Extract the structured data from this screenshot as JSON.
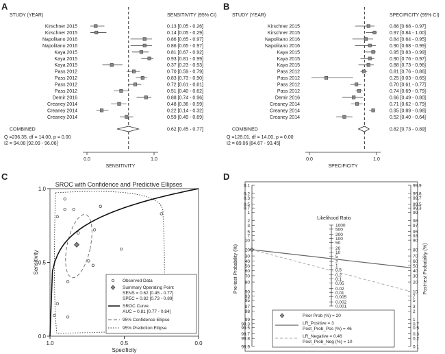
{
  "chart_data": [
    {
      "panel": "A",
      "type": "forest",
      "col_study": "STUDY (YEAR)",
      "col_est": "SENSITIVITY (95% CI)",
      "xlabel": "SENSITIVITY",
      "xlim": [
        0,
        1
      ],
      "ticks": [
        {
          "v": 0,
          "label": "0.0"
        },
        {
          "v": 1,
          "label": "1.0"
        }
      ],
      "ref_line": 0.62,
      "studies": [
        {
          "name": "Kirschner 2015",
          "est": 0.13,
          "lo": 0.05,
          "hi": 0.26,
          "ci": "0.13 [0.05 - 0.26]"
        },
        {
          "name": "Kirschner 2015",
          "est": 0.14,
          "lo": 0.05,
          "hi": 0.29,
          "ci": "0.14 [0.05 - 0.29]"
        },
        {
          "name": "Napolitano 2016",
          "est": 0.86,
          "lo": 0.65,
          "hi": 0.97,
          "ci": "0.86 [0.65 - 0.97]"
        },
        {
          "name": "Napolitano 2016",
          "est": 0.86,
          "lo": 0.65,
          "hi": 0.97,
          "ci": "0.86 [0.65 - 0.97]"
        },
        {
          "name": "Kaya 2015",
          "est": 0.81,
          "lo": 0.67,
          "hi": 0.92,
          "ci": "0.81 [0.67 - 0.92]"
        },
        {
          "name": "Kaya 2015",
          "est": 0.93,
          "lo": 0.81,
          "hi": 0.99,
          "ci": "0.93 [0.81 - 0.99]"
        },
        {
          "name": "Kaya 2015",
          "est": 0.37,
          "lo": 0.23,
          "hi": 0.53,
          "ci": "0.37 [0.23 - 0.53]"
        },
        {
          "name": "Pass 2012",
          "est": 0.7,
          "lo": 0.59,
          "hi": 0.79,
          "ci": "0.70 [0.59 - 0.79]"
        },
        {
          "name": "Pass 2012",
          "est": 0.83,
          "lo": 0.73,
          "hi": 0.9,
          "ci": "0.83 [0.73 - 0.90]"
        },
        {
          "name": "Pass 2012",
          "est": 0.72,
          "lo": 0.61,
          "hi": 0.81,
          "ci": "0.72 [0.61 - 0.81]"
        },
        {
          "name": "Pass 2012",
          "est": 0.51,
          "lo": 0.4,
          "hi": 0.62,
          "ci": "0.51 [0.40 - 0.62]"
        },
        {
          "name": "Demir 2016",
          "est": 0.88,
          "lo": 0.74,
          "hi": 0.96,
          "ci": "0.88 [0.74 - 0.96]"
        },
        {
          "name": "Creaney 2014",
          "est": 0.48,
          "lo": 0.36,
          "hi": 0.59,
          "ci": "0.48 [0.36 - 0.59]"
        },
        {
          "name": "Creaney 2014",
          "est": 0.22,
          "lo": 0.14,
          "hi": 0.32,
          "ci": "0.22 [0.14 - 0.32]"
        },
        {
          "name": "Creaney 2014",
          "est": 0.59,
          "lo": 0.49,
          "hi": 0.69,
          "ci": "0.59 [0.49 - 0.69]"
        }
      ],
      "combined": {
        "label": "COMBINED",
        "est": 0.62,
        "lo": 0.45,
        "hi": 0.77,
        "ci": "0.62 [0.45 - 0.77]"
      },
      "stats": [
        "Q =236.35, df = 14.00, p =  0.00",
        "I2 = 94.08 [92.09 - 96.06]"
      ]
    },
    {
      "panel": "B",
      "type": "forest",
      "col_study": "STUDY (YEAR)",
      "col_est": "SPECIFICITY (95% CI)",
      "xlabel": "SPECIFICITY",
      "xlim": [
        0,
        1
      ],
      "ticks": [
        {
          "v": 0,
          "label": "0.0"
        },
        {
          "v": 1,
          "label": "1.0"
        }
      ],
      "ref_line": 0.82,
      "studies": [
        {
          "name": "Kirschner 2015",
          "est": 0.88,
          "lo": 0.68,
          "hi": 0.97,
          "ci": "0.88 [0.68 - 0.97]"
        },
        {
          "name": "Kirschner 2015",
          "est": 0.97,
          "lo": 0.84,
          "hi": 1.0,
          "ci": "0.97 [0.84 - 1.00]"
        },
        {
          "name": "Napolitano 2016",
          "est": 0.84,
          "lo": 0.64,
          "hi": 0.95,
          "ci": "0.84 [0.64 - 0.95]"
        },
        {
          "name": "Napolitano 2016",
          "est": 0.9,
          "lo": 0.68,
          "hi": 0.99,
          "ci": "0.90 [0.68 - 0.99]"
        },
        {
          "name": "Kaya 2015",
          "est": 0.95,
          "lo": 0.83,
          "hi": 0.99,
          "ci": "0.95 [0.83 - 0.99]"
        },
        {
          "name": "Kaya 2015",
          "est": 0.9,
          "lo": 0.76,
          "hi": 0.97,
          "ci": "0.90 [0.76 - 0.97]"
        },
        {
          "name": "Kaya 2015",
          "est": 0.88,
          "lo": 0.73,
          "hi": 0.96,
          "ci": "0.88 [0.73 - 0.96]"
        },
        {
          "name": "Pass 2012",
          "est": 0.81,
          "lo": 0.76,
          "hi": 0.86,
          "ci": "0.81 [0.76 - 0.86]"
        },
        {
          "name": "Pass 2012",
          "est": 0.25,
          "lo": 0.03,
          "hi": 0.65,
          "ci": "0.25 [0.03 - 0.65]"
        },
        {
          "name": "Pass 2012",
          "est": 0.7,
          "lo": 0.61,
          "hi": 0.77,
          "ci": "0.70 [0.61 - 0.77]"
        },
        {
          "name": "Pass 2012",
          "est": 0.74,
          "lo": 0.69,
          "hi": 0.79,
          "ci": "0.74 [0.69 - 0.79]"
        },
        {
          "name": "Demir 2016",
          "est": 0.66,
          "lo": 0.49,
          "hi": 0.8,
          "ci": "0.66 [0.49 - 0.80]"
        },
        {
          "name": "Creaney 2014",
          "est": 0.71,
          "lo": 0.62,
          "hi": 0.79,
          "ci": "0.71 [0.62 - 0.79]"
        },
        {
          "name": "Creaney 2014",
          "est": 0.95,
          "lo": 0.89,
          "hi": 0.98,
          "ci": "0.95 [0.89 - 0.98]"
        },
        {
          "name": "Creaney 2014",
          "est": 0.52,
          "lo": 0.4,
          "hi": 0.64,
          "ci": "0.52 [0.40 - 0.64]"
        }
      ],
      "combined": {
        "label": "COMBINED",
        "est": 0.82,
        "lo": 0.73,
        "hi": 0.89,
        "ci": "0.82 [0.73 - 0.89]"
      },
      "stats": [
        "Q =128.01, df = 14.00, p =  0.00",
        "I2 = 89.06 [84.67 - 93.45]"
      ]
    },
    {
      "panel": "C",
      "type": "scatter",
      "title": "SROC with Confidence and Predictive Ellipses",
      "xlabel": "Specificity",
      "ylabel": "Sensitivity",
      "xlim": [
        1.0,
        0.0
      ],
      "ylim": [
        0.0,
        1.0
      ],
      "xticks": [
        {
          "v": 1.0,
          "label": "1.0"
        },
        {
          "v": 0.5,
          "label": "0.5"
        },
        {
          "v": 0.0,
          "label": "0.0"
        }
      ],
      "yticks": [
        {
          "v": 0.0,
          "label": "0.0"
        },
        {
          "v": 0.5,
          "label": "0.5"
        },
        {
          "v": 1.0,
          "label": "1.0"
        }
      ],
      "observed": [
        {
          "spec": 0.88,
          "sens": 0.13
        },
        {
          "spec": 0.97,
          "sens": 0.14
        },
        {
          "spec": 0.84,
          "sens": 0.86
        },
        {
          "spec": 0.9,
          "sens": 0.86
        },
        {
          "spec": 0.95,
          "sens": 0.81
        },
        {
          "spec": 0.9,
          "sens": 0.93
        },
        {
          "spec": 0.88,
          "sens": 0.37
        },
        {
          "spec": 0.81,
          "sens": 0.7
        },
        {
          "spec": 0.25,
          "sens": 0.83
        },
        {
          "spec": 0.7,
          "sens": 0.72
        },
        {
          "spec": 0.74,
          "sens": 0.51
        },
        {
          "spec": 0.66,
          "sens": 0.88
        },
        {
          "spec": 0.71,
          "sens": 0.48
        },
        {
          "spec": 0.95,
          "sens": 0.22
        },
        {
          "spec": 0.52,
          "sens": 0.59
        }
      ],
      "summary_point": {
        "spec": 0.82,
        "sens": 0.62
      },
      "legend": {
        "observed": "Observed Data",
        "summary": "Summary Operating Point",
        "sens": "SENS = 0.62 [0.45 - 0.77]",
        "spec": "SPEC = 0.82 [0.73 - 0.89]",
        "sroc": "SROC Curve",
        "auc": "AUC = 0.81 [0.77 - 0.84]",
        "conf": "95% Confidence Ellipse",
        "pred": "95% Prediction Ellipse"
      }
    },
    {
      "panel": "D",
      "type": "nomogram",
      "left_label": "Pre-test Probability (%)",
      "right_label": "Post-test Probability (%)",
      "lr_title": "Likelihood Ratio",
      "prob_scale": [
        0.1,
        0.2,
        0.3,
        0.5,
        0.7,
        1,
        2,
        3,
        5,
        7,
        10,
        20,
        30,
        40,
        50,
        60,
        70,
        80,
        90,
        93,
        95,
        97,
        98,
        99,
        99.3,
        99.5,
        99.7,
        99.8,
        99.9
      ],
      "lr_scale": [
        1000,
        500,
        200,
        100,
        50,
        20,
        10,
        5,
        2,
        1,
        0.5,
        0.2,
        0.1,
        0.05,
        0.02,
        0.01,
        0.005,
        0.002,
        0.001
      ],
      "prior": 20,
      "lr_pos": 3,
      "post_pos": 46,
      "lr_neg": 0.46,
      "post_neg": 10,
      "legend": {
        "prior": "Prior Prob (%) =  20",
        "lrp": "LR_Positive =     3",
        "postp": "Post_Prob_Pos (%) =  46",
        "lrn": "LR_Negative =  0.46",
        "postn": "Post_Prob_Neg (%) =  10"
      }
    }
  ],
  "panel_letters": [
    "A",
    "B",
    "C",
    "D"
  ]
}
